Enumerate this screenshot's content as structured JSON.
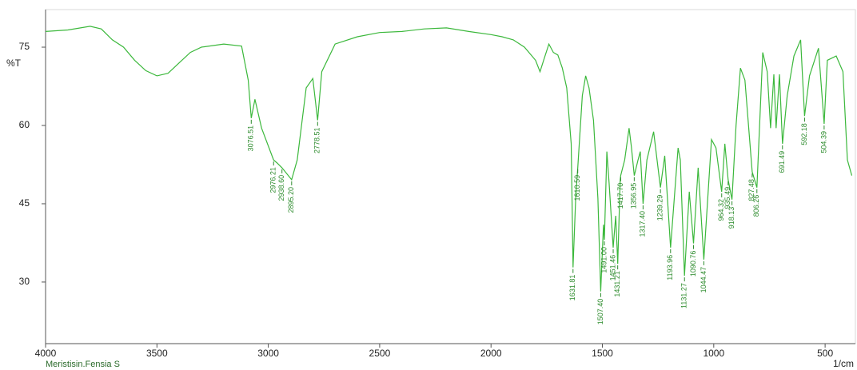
{
  "chart_data": {
    "type": "line",
    "caption": "Meristisin.Fensia S",
    "xlabel": "1/cm",
    "ylabel": "%T",
    "xlim": [
      4000,
      364
    ],
    "ylim": [
      18.2,
      82.2
    ],
    "xticks": [
      4000,
      3500,
      3000,
      2500,
      2000,
      1500,
      1000,
      500
    ],
    "yticks": [
      30,
      45,
      60,
      75
    ],
    "series": [
      {
        "color": "#3cb83c",
        "x": [
          4000,
          3900,
          3800,
          3750,
          3700,
          3650,
          3600,
          3550,
          3500,
          3450,
          3400,
          3350,
          3300,
          3200,
          3120,
          3090,
          3076.51,
          3060,
          3030,
          2976.21,
          2960,
          2938.6,
          2895.2,
          2870,
          2830,
          2800,
          2778.51,
          2760,
          2700,
          2600,
          2500,
          2400,
          2300,
          2200,
          2100,
          2000,
          1950,
          1900,
          1850,
          1800,
          1780,
          1760,
          1740,
          1720,
          1700,
          1680,
          1660,
          1640,
          1631.81,
          1620,
          1610.59,
          1590,
          1575,
          1560,
          1540,
          1520,
          1507.4,
          1495,
          1491,
          1480,
          1470,
          1451.46,
          1440,
          1431.21,
          1420,
          1417.7,
          1400,
          1380,
          1370,
          1356.95,
          1340,
          1330,
          1317.4,
          1300,
          1270,
          1239.29,
          1220,
          1193.96,
          1160,
          1150,
          1131.27,
          1110,
          1090.76,
          1070,
          1044.47,
          1010,
          990,
          964.32,
          950,
          935.49,
          918.13,
          900,
          880,
          860,
          827.48,
          806.26,
          780,
          760,
          745,
          730,
          720,
          705,
          691.49,
          670,
          640,
          610,
          592.18,
          570,
          530,
          504.39,
          490,
          450,
          420,
          400,
          380
        ],
        "values": [
          78.0,
          78.3,
          79.0,
          78.5,
          76.4,
          75.0,
          72.5,
          70.5,
          69.5,
          70.0,
          72.0,
          74.0,
          75.0,
          75.6,
          75.2,
          68.7,
          61.4,
          65.0,
          59.5,
          53.4,
          52.8,
          51.9,
          49.6,
          53.4,
          67.2,
          69.0,
          61.0,
          70.3,
          75.6,
          77.0,
          77.8,
          78.0,
          78.5,
          78.7,
          78.0,
          77.4,
          77.0,
          76.4,
          75.0,
          72.5,
          70.3,
          73.0,
          75.6,
          74.0,
          73.5,
          71.0,
          67.2,
          56.5,
          32.8,
          46.0,
          51.9,
          65.7,
          69.5,
          67.2,
          61.0,
          46.0,
          28.2,
          41.0,
          38.1,
          55.0,
          49.0,
          36.6,
          42.7,
          33.5,
          49.6,
          50.4,
          53.4,
          59.5,
          56.0,
          50.4,
          53.4,
          55.0,
          45.0,
          53.4,
          58.8,
          48.1,
          54.2,
          36.6,
          55.7,
          53.4,
          31.2,
          47.3,
          37.4,
          51.9,
          34.3,
          57.3,
          55.7,
          47.3,
          56.5,
          49.6,
          45.8,
          60.0,
          71.0,
          68.7,
          51.1,
          48.1,
          74.0,
          70.3,
          59.5,
          69.8,
          59.5,
          69.8,
          56.5,
          65.7,
          73.3,
          76.4,
          61.8,
          69.5,
          74.8,
          60.3,
          72.5,
          73.3,
          70.3,
          53.4,
          50.4
        ]
      }
    ],
    "peaks": [
      {
        "value": 3076.51,
        "label": "3076.51"
      },
      {
        "value": 2976.21,
        "label": "2976.21"
      },
      {
        "value": 2938.6,
        "label": "2938.60"
      },
      {
        "value": 2895.2,
        "label": "2895.20"
      },
      {
        "value": 2778.51,
        "label": "2778.51"
      },
      {
        "value": 1631.81,
        "label": "1631.81"
      },
      {
        "value": 1610.59,
        "label": "1610.59"
      },
      {
        "value": 1507.4,
        "label": "1507.40"
      },
      {
        "value": 1491,
        "label": "1491.00"
      },
      {
        "value": 1451.46,
        "label": "1451.46"
      },
      {
        "value": 1431.21,
        "label": "1431.21"
      },
      {
        "value": 1417.7,
        "label": "1417.70"
      },
      {
        "value": 1356.95,
        "label": "1356.95"
      },
      {
        "value": 1317.4,
        "label": "1317.40"
      },
      {
        "value": 1239.29,
        "label": "1239.29"
      },
      {
        "value": 1193.96,
        "label": "1193.96"
      },
      {
        "value": 1131.27,
        "label": "1131.27"
      },
      {
        "value": 1090.76,
        "label": "1090.76"
      },
      {
        "value": 1044.47,
        "label": "1044.47"
      },
      {
        "value": 964.32,
        "label": "964.32"
      },
      {
        "value": 935.49,
        "label": "935.49"
      },
      {
        "value": 918.13,
        "label": "918.13"
      },
      {
        "value": 827.48,
        "label": "827.48"
      },
      {
        "value": 806.26,
        "label": "806.26"
      },
      {
        "value": 691.49,
        "label": "691.49"
      },
      {
        "value": 592.18,
        "label": "592.18"
      },
      {
        "value": 504.39,
        "label": "504.39"
      }
    ]
  }
}
